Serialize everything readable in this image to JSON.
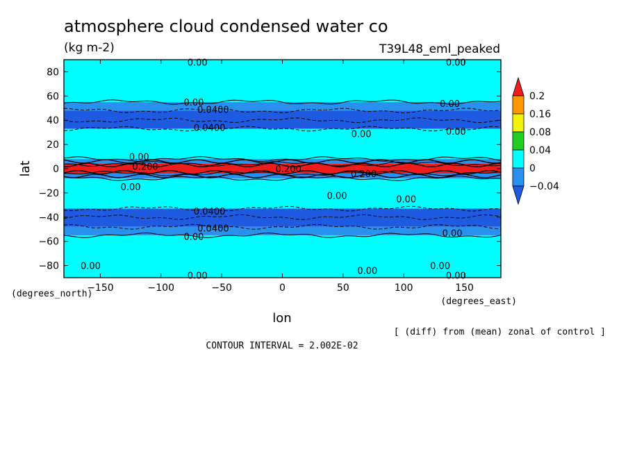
{
  "chart_data": {
    "type": "heatmap",
    "title": "atmosphere cloud condensed water co",
    "units": "(kg m-2)",
    "experiment": "T39L48_eml_peaked",
    "xlabel": "lon",
    "ylabel": "lat",
    "x_unit_label": "(degrees_east)",
    "y_unit_label": "(degrees_north)",
    "xlim": [
      -180,
      180
    ],
    "ylim": [
      -90,
      90
    ],
    "x_ticks": [
      -150,
      -100,
      -50,
      0,
      50,
      100,
      150
    ],
    "y_ticks": [
      80,
      60,
      40,
      20,
      0,
      -20,
      -40,
      -60,
      -80
    ],
    "contour_interval_text": "CONTOUR INTERVAL = 2.002E-02",
    "note": "[ (diff) from (mean) zonal of control ]",
    "colorbar": {
      "levels": [
        "0.2",
        "0.16",
        "0.08",
        "0.04",
        "0",
        "-0.04"
      ],
      "colors": [
        "#ee1c1c",
        "#ff9900",
        "#f2f20e",
        "#22cc22",
        "#00ffff",
        "#2a90ee",
        "#1f5be0"
      ]
    },
    "bands": [
      {
        "lat_top": 90,
        "lat_bottom": 55,
        "color": "#00ffff"
      },
      {
        "lat_top": 55,
        "lat_bottom": 48,
        "color": "#2a90ee"
      },
      {
        "lat_top": 48,
        "lat_bottom": 33,
        "color": "#1f5be0"
      },
      {
        "lat_top": 33,
        "lat_bottom": 8,
        "color": "#00ffff"
      },
      {
        "lat_top": 8,
        "lat_bottom": 4,
        "color": "#2a90ee"
      },
      {
        "lat_top": 4,
        "lat_bottom": -4,
        "color": "#ee1c1c"
      },
      {
        "lat_top": -4,
        "lat_bottom": -8,
        "color": "#2a90ee"
      },
      {
        "lat_top": -8,
        "lat_bottom": -33,
        "color": "#00ffff"
      },
      {
        "lat_top": -33,
        "lat_bottom": -48,
        "color": "#1f5be0"
      },
      {
        "lat_top": -48,
        "lat_bottom": -55,
        "color": "#2a90ee"
      },
      {
        "lat_top": -55,
        "lat_bottom": -90,
        "color": "#00ffff"
      }
    ],
    "contour_lines_lat": [
      55,
      48,
      40,
      33,
      8,
      4,
      -4,
      -8,
      -33,
      -40,
      -48,
      -55
    ],
    "contour_labels": [
      {
        "text": "0.00",
        "lon": -70,
        "lat": 88
      },
      {
        "text": "0.00",
        "lon": 143,
        "lat": 88
      },
      {
        "text": "0.00",
        "lon": -73,
        "lat": 55
      },
      {
        "text": "0.0400",
        "lon": -57,
        "lat": 49
      },
      {
        "text": "0.00",
        "lon": 138,
        "lat": 54
      },
      {
        "text": "0.0400",
        "lon": -60,
        "lat": 34
      },
      {
        "text": "0.00",
        "lon": 143,
        "lat": 31
      },
      {
        "text": "0.00",
        "lon": 65,
        "lat": 29
      },
      {
        "text": "0.00",
        "lon": -118,
        "lat": 10
      },
      {
        "text": "0.200",
        "lon": -113,
        "lat": 2
      },
      {
        "text": "0.200",
        "lon": 5,
        "lat": 0
      },
      {
        "text": "0.200",
        "lon": 67,
        "lat": -4
      },
      {
        "text": "0.00",
        "lon": -125,
        "lat": -15
      },
      {
        "text": "0.00",
        "lon": 45,
        "lat": -22
      },
      {
        "text": "0.00",
        "lon": 102,
        "lat": -25
      },
      {
        "text": "0.0400",
        "lon": -60,
        "lat": -35
      },
      {
        "text": "0.0400",
        "lon": -57,
        "lat": -49
      },
      {
        "text": "0.00",
        "lon": -73,
        "lat": -56
      },
      {
        "text": "0.00",
        "lon": 140,
        "lat": -53
      },
      {
        "text": "0.00",
        "lon": -158,
        "lat": -80
      },
      {
        "text": "0.00",
        "lon": 70,
        "lat": -84
      },
      {
        "text": "0.00",
        "lon": 130,
        "lat": -80
      },
      {
        "text": "0.00",
        "lon": 143,
        "lat": -88
      },
      {
        "text": "0.00",
        "lon": -70,
        "lat": -88
      }
    ]
  }
}
